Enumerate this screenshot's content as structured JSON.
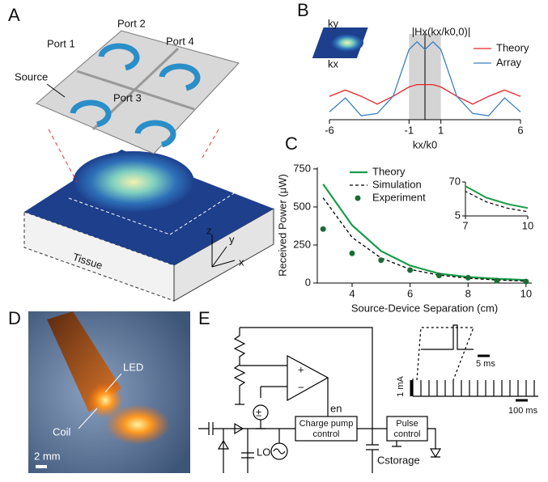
{
  "panels": {
    "A": {
      "label": "A",
      "source": "Source",
      "ports": [
        "Port 1",
        "Port 2",
        "Port 3",
        "Port 4"
      ],
      "tissue": "Tissue",
      "axes": [
        "z",
        "y",
        "x"
      ]
    },
    "D": {
      "label": "D",
      "led": "LED",
      "coil": "Coil",
      "scale": "2 mm"
    },
    "E": {
      "label": "E",
      "en": "en",
      "charge_pump": [
        "Charge pump",
        "control"
      ],
      "pulse_control": [
        "Pulse",
        "control"
      ],
      "lo": "LO",
      "cstorage": "Cstorage",
      "opamp": [
        "+",
        "−"
      ],
      "source_sign": "±",
      "pulse_width": "5 ms",
      "current": "1 mA",
      "period": "100 ms"
    }
  },
  "chart_data": [
    {
      "type": "line",
      "panel_label": "B",
      "title": "|Hx(kx/k0,0)|",
      "inset_labels": [
        "ky",
        "kx"
      ],
      "x": [
        -6,
        -5,
        -4,
        -3,
        -2,
        -1,
        -0.5,
        0,
        0.5,
        1,
        2,
        3,
        4,
        5,
        6
      ],
      "series": [
        {
          "name": "Theory",
          "color": "#e8242b",
          "values": [
            0.3,
            0.38,
            0.3,
            0.2,
            0.3,
            0.42,
            0.45,
            0.45,
            0.45,
            0.42,
            0.3,
            0.2,
            0.3,
            0.38,
            0.3
          ]
        },
        {
          "name": "Array",
          "color": "#3a7fc1",
          "values": [
            0.1,
            0.28,
            0.05,
            0.08,
            0.3,
            0.9,
            1,
            0.9,
            1,
            0.9,
            0.3,
            0.08,
            0.05,
            0.28,
            0.1
          ]
        }
      ],
      "xlim": [
        -6,
        6
      ],
      "ylim": [
        0,
        1.1
      ],
      "xticks": [
        -6,
        -1,
        1,
        6
      ],
      "xlabel": "kx/k0",
      "highlight_band": [
        -1,
        1
      ],
      "marker_x": 0
    },
    {
      "type": "line",
      "panel_label": "C",
      "x": [
        3,
        4,
        5,
        6,
        7,
        8,
        9,
        10
      ],
      "series": [
        {
          "name": "Theory",
          "color": "#1a9c4a",
          "style": "solid",
          "values": [
            650,
            380,
            210,
            115,
            62,
            40,
            28,
            20
          ]
        },
        {
          "name": "Simulation",
          "color": "#000000",
          "style": "dashed",
          "values": [
            560,
            300,
            165,
            90,
            52,
            32,
            20,
            13
          ]
        },
        {
          "name": "Experiment",
          "color": "#1e6b36",
          "style": "points",
          "values": [
            355,
            195,
            150,
            85,
            50,
            35,
            15,
            10
          ]
        }
      ],
      "xlim": [
        2.8,
        10.2
      ],
      "ylim": [
        0,
        760
      ],
      "xticks": [
        4,
        6,
        8,
        10
      ],
      "yticks": [
        0,
        250,
        500,
        750
      ],
      "xlabel": "Source-Device Separation (cm)",
      "ylabel": "Received Power (μW)",
      "inset": {
        "xlim": [
          7,
          10
        ],
        "ylim": [
          5,
          70
        ],
        "xticks": [
          7,
          10
        ],
        "yticks": [
          5,
          70
        ]
      }
    }
  ]
}
